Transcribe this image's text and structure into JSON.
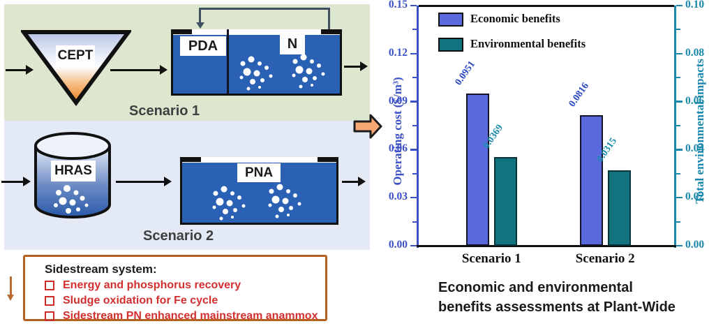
{
  "diagram": {
    "scenario1": {
      "label": "Scenario 1",
      "funnel_label": "CEPT",
      "tank_sections": {
        "left": "PDA",
        "right": "N"
      }
    },
    "scenario2": {
      "label": "Scenario 2",
      "cylinder_label": "HRAS",
      "tank_label": "PNA"
    },
    "sidestream": {
      "title": "Sidestream system:",
      "items": [
        "Energy and phosphorus recovery",
        "Sludge oxidation for Fe cycle",
        "Sidestream  PN enhanced mainstream anammox"
      ],
      "text_color": "#d32f2f",
      "border_color": "#b5601f"
    },
    "background_colors": {
      "scenario1": "#dde7cf",
      "scenario2": "#e4eaf5",
      "tank_blue": "#2b61b4"
    }
  },
  "chart_data": {
    "type": "bar",
    "title": "",
    "categories": [
      "Scenario 1",
      "Scenario 2"
    ],
    "series": [
      {
        "name": "Economic benefits",
        "axis": "left",
        "values": [
          0.0951,
          0.0816
        ],
        "labels": [
          "0.0951",
          "0.0816"
        ],
        "color": "#5b69de",
        "border": "#15152a",
        "label_color": "#2746c2"
      },
      {
        "name": "Environmental benefits",
        "axis": "right",
        "values": [
          0.0369,
          0.0315
        ],
        "labels": [
          "0.0369",
          "0.0315"
        ],
        "color": "#12737f",
        "border": "#07333a",
        "label_color": "#1b8cb0"
      }
    ],
    "left_axis": {
      "label": "Operating cost ($/m³)",
      "min": 0,
      "max": 0.15,
      "ticks": [
        "0.00",
        "0.03",
        "0.06",
        "0.09",
        "0.12",
        "0.15"
      ],
      "color": "#3b50c6"
    },
    "right_axis": {
      "label": "Total environmental impacts",
      "min": 0,
      "max": 0.1,
      "ticks": [
        "0.00",
        "0.02",
        "0.04",
        "0.06",
        "0.08",
        "0.10"
      ],
      "color": "#1987aa"
    },
    "legend_position": "top-left",
    "grid": false
  },
  "caption": {
    "line1": "Economic and environmental",
    "line2": "benefits assessments at Plant-Wide"
  }
}
